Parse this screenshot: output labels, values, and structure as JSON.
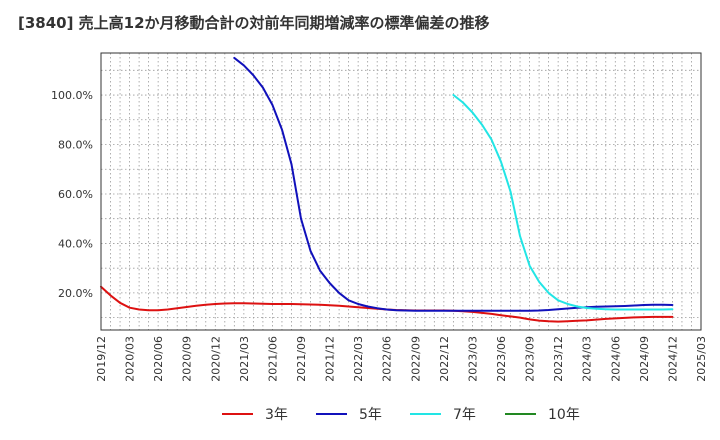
{
  "chart_data": {
    "type": "line",
    "title": "[3840]  売上高12か月移動合計の対前年同期増減率の標準偏差の推移",
    "xlabel": "",
    "ylabel": "",
    "x_ticks": [
      "2019/12",
      "2020/03",
      "2020/06",
      "2020/09",
      "2020/12",
      "2021/03",
      "2021/06",
      "2021/09",
      "2021/12",
      "2022/03",
      "2022/06",
      "2022/09",
      "2022/12",
      "2023/03",
      "2023/06",
      "2023/09",
      "2023/12",
      "2024/03",
      "2024/06",
      "2024/09",
      "2024/12",
      "2025/03"
    ],
    "y_ticks": [
      "20.0%",
      "40.0%",
      "60.0%",
      "80.0%",
      "100.0%"
    ],
    "ylim": [
      5,
      117
    ],
    "grid": true,
    "legend_position": "bottom",
    "series": [
      {
        "name": "3年",
        "color": "#dd1111",
        "x": [
          "2019/12",
          "2020/01",
          "2020/02",
          "2020/03",
          "2020/04",
          "2020/05",
          "2020/06",
          "2020/07",
          "2020/08",
          "2020/09",
          "2020/10",
          "2020/11",
          "2020/12",
          "2021/01",
          "2021/02",
          "2021/03",
          "2021/04",
          "2021/05",
          "2021/06",
          "2021/07",
          "2021/08",
          "2021/09",
          "2021/10",
          "2021/11",
          "2021/12",
          "2022/01",
          "2022/02",
          "2022/03",
          "2022/04",
          "2022/05",
          "2022/06",
          "2022/07",
          "2022/08",
          "2022/09",
          "2022/10",
          "2022/11",
          "2022/12",
          "2023/01",
          "2023/02",
          "2023/03",
          "2023/04",
          "2023/05",
          "2023/06",
          "2023/07",
          "2023/08",
          "2023/09",
          "2023/10",
          "2023/11",
          "2023/12",
          "2024/01",
          "2024/02",
          "2024/03",
          "2024/04",
          "2024/05",
          "2024/06",
          "2024/07",
          "2024/08",
          "2024/09",
          "2024/10",
          "2024/11",
          "2024/12"
        ],
        "values": [
          22.5,
          19,
          16,
          14,
          13.3,
          13,
          13,
          13.3,
          13.8,
          14.3,
          14.8,
          15.2,
          15.5,
          15.7,
          15.8,
          15.8,
          15.7,
          15.6,
          15.5,
          15.5,
          15.5,
          15.4,
          15.3,
          15.2,
          15,
          14.8,
          14.5,
          14.2,
          13.9,
          13.6,
          13.3,
          13.1,
          13,
          12.9,
          12.9,
          12.9,
          12.9,
          12.8,
          12.6,
          12.3,
          11.9,
          11.5,
          11,
          10.5,
          10,
          9.3,
          8.8,
          8.5,
          8.4,
          8.5,
          8.7,
          8.9,
          9.2,
          9.5,
          9.7,
          9.9,
          10.1,
          10.2,
          10.3,
          10.3,
          10.3
        ]
      },
      {
        "name": "5年",
        "color": "#1111bb",
        "x": [
          "2021/02",
          "2021/03",
          "2021/04",
          "2021/05",
          "2021/06",
          "2021/07",
          "2021/08",
          "2021/09",
          "2021/10",
          "2021/11",
          "2021/12",
          "2022/01",
          "2022/02",
          "2022/03",
          "2022/04",
          "2022/05",
          "2022/06",
          "2022/07",
          "2022/08",
          "2022/09",
          "2022/10",
          "2022/11",
          "2022/12",
          "2023/01",
          "2023/02",
          "2023/03",
          "2023/04",
          "2023/05",
          "2023/06",
          "2023/07",
          "2023/08",
          "2023/09",
          "2023/10",
          "2023/11",
          "2023/12",
          "2024/01",
          "2024/02",
          "2024/03",
          "2024/04",
          "2024/05",
          "2024/06",
          "2024/07",
          "2024/08",
          "2024/09",
          "2024/10",
          "2024/11",
          "2024/12"
        ],
        "values": [
          115,
          112,
          108,
          103,
          96,
          86,
          72,
          50,
          37,
          29,
          24,
          20,
          17,
          15.5,
          14.5,
          13.8,
          13.3,
          13,
          12.9,
          12.8,
          12.8,
          12.8,
          12.8,
          12.8,
          12.8,
          12.8,
          12.8,
          12.8,
          12.8,
          12.8,
          12.8,
          12.8,
          12.9,
          13.1,
          13.4,
          13.7,
          14,
          14.2,
          14.4,
          14.5,
          14.6,
          14.7,
          14.9,
          15.1,
          15.2,
          15.2,
          15.1
        ]
      },
      {
        "name": "7年",
        "color": "#22e5e5",
        "x": [
          "2023/01",
          "2023/02",
          "2023/03",
          "2023/04",
          "2023/05",
          "2023/06",
          "2023/07",
          "2023/08",
          "2023/09",
          "2023/10",
          "2023/11",
          "2023/12",
          "2024/01",
          "2024/02",
          "2024/03",
          "2024/04",
          "2024/05",
          "2024/06",
          "2024/07",
          "2024/08",
          "2024/09",
          "2024/10",
          "2024/11",
          "2024/12"
        ],
        "values": [
          100,
          97,
          93,
          88,
          82,
          73,
          61,
          43,
          31,
          24.5,
          20,
          17,
          15.5,
          14.5,
          13.9,
          13.6,
          13.4,
          13.3,
          13.3,
          13.3,
          13.3,
          13.3,
          13.3,
          13.4
        ]
      },
      {
        "name": "10年",
        "color": "#228822",
        "x": [],
        "values": []
      }
    ]
  }
}
